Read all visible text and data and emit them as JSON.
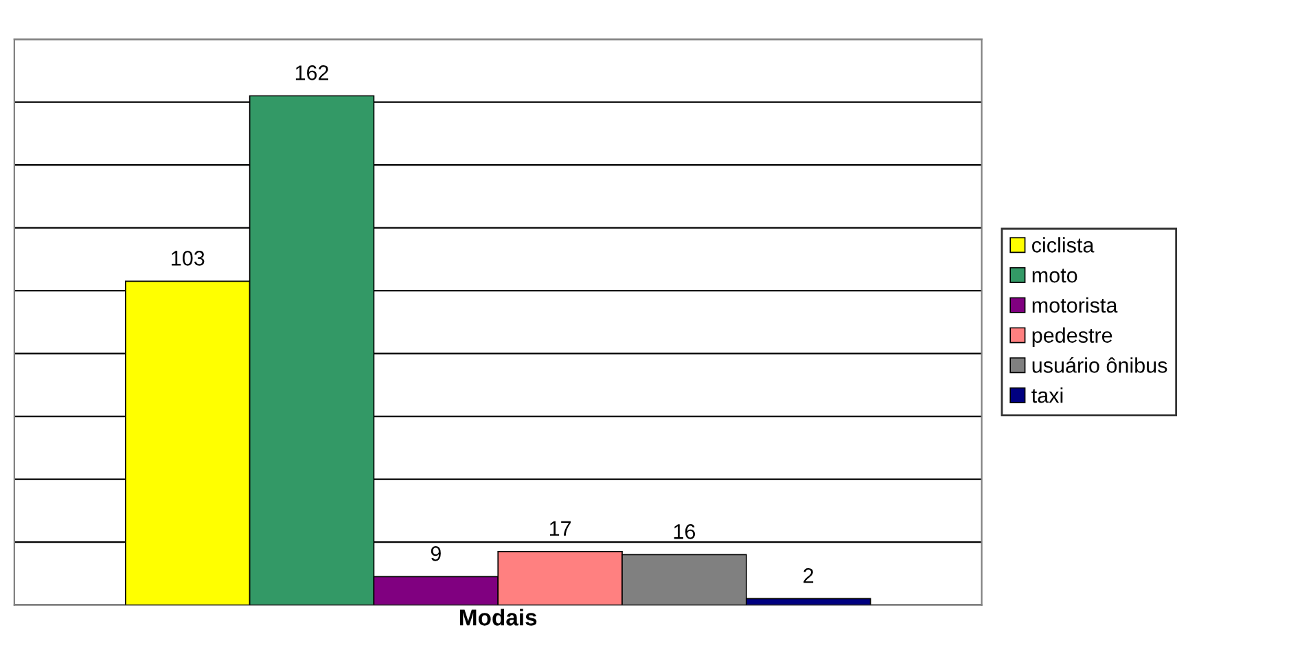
{
  "chart_data": {
    "type": "bar",
    "xlabel": "Modais",
    "categories": [
      null
    ],
    "series": [
      {
        "name": "ciclista",
        "color": "#ffff00",
        "values": [
          103
        ]
      },
      {
        "name": "moto",
        "color": "#339966",
        "values": [
          162
        ]
      },
      {
        "name": "motorista",
        "color": "#800080",
        "values": [
          9
        ]
      },
      {
        "name": "pedestre",
        "color": "#ff8080",
        "values": [
          17
        ]
      },
      {
        "name": "usuário ônibus",
        "color": "#808080",
        "values": [
          16
        ]
      },
      {
        "name": "taxi",
        "color": "#000080",
        "values": [
          2
        ]
      }
    ],
    "ylim": [
      0,
      180
    ],
    "yticks": [
      {
        "value": 0,
        "label": null
      },
      {
        "value": 20,
        "label": null
      },
      {
        "value": 40,
        "label": null
      },
      {
        "value": 60,
        "label": null
      },
      {
        "value": 80,
        "label": null
      },
      {
        "value": 100,
        "label": null
      },
      {
        "value": 120,
        "label": null
      },
      {
        "value": 140,
        "label": null
      },
      {
        "value": 160,
        "label": null
      },
      {
        "value": 180,
        "label": null
      }
    ],
    "grid": "y",
    "legend": "right",
    "data_labels": true,
    "tick_labels": false
  }
}
